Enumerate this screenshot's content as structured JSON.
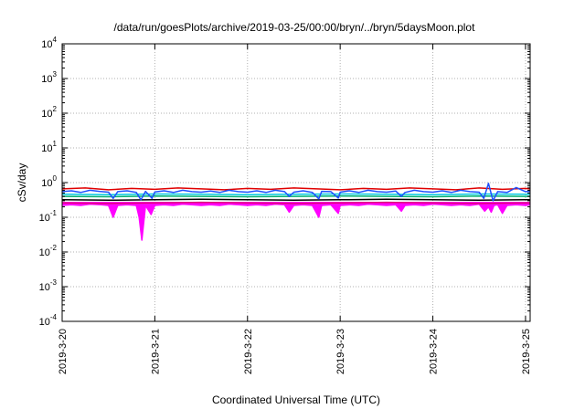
{
  "chart_data": {
    "type": "line",
    "title": "/data/run/goesPlots/archive/2019-03-25/00:00/bryn/../bryn/5daysMoon.plot",
    "xlabel": "Coordinated Universal Time (UTC)",
    "ylabel": "cSv/day",
    "yscale": "log",
    "ylim": [
      0.0001,
      10000
    ],
    "xlim": [
      0,
      5.05
    ],
    "grid": true,
    "legend": "none",
    "x_ticks": [
      {
        "value": 0,
        "label": "2019-3-20"
      },
      {
        "value": 1,
        "label": "2019-3-21"
      },
      {
        "value": 2,
        "label": "2019-3-22"
      },
      {
        "value": 3,
        "label": "2019-3-23"
      },
      {
        "value": 4,
        "label": "2019-3-24"
      },
      {
        "value": 5,
        "label": "2019-3-25"
      }
    ],
    "y_ticks": [
      {
        "value": 0.0001,
        "base": "10",
        "exp": "-4"
      },
      {
        "value": 0.001,
        "base": "10",
        "exp": "-3"
      },
      {
        "value": 0.01,
        "base": "10",
        "exp": "-2"
      },
      {
        "value": 0.1,
        "base": "10",
        "exp": "-1"
      },
      {
        "value": 1,
        "base": "10",
        "exp": "0"
      },
      {
        "value": 10,
        "base": "10",
        "exp": "1"
      },
      {
        "value": 100,
        "base": "10",
        "exp": "2"
      },
      {
        "value": 1000,
        "base": "10",
        "exp": "3"
      },
      {
        "value": 10000,
        "base": "10",
        "exp": "4"
      }
    ],
    "series": [
      {
        "color": "#ff00ff",
        "fill": true,
        "x": [
          0,
          0.1,
          0.2,
          0.3,
          0.42,
          0.5,
          0.55,
          0.6,
          0.7,
          0.8,
          0.83,
          0.86,
          0.9,
          0.96,
          1.0,
          1.1,
          1.2,
          1.3,
          1.4,
          1.5,
          1.6,
          1.7,
          1.8,
          1.9,
          2.0,
          2.1,
          2.2,
          2.3,
          2.4,
          2.45,
          2.5,
          2.6,
          2.7,
          2.77,
          2.8,
          2.9,
          2.98,
          3.0,
          3.1,
          3.2,
          3.3,
          3.4,
          3.5,
          3.6,
          3.66,
          3.7,
          3.8,
          3.9,
          4.0,
          4.1,
          4.2,
          4.3,
          4.4,
          4.5,
          4.56,
          4.6,
          4.63,
          4.66,
          4.7,
          4.75,
          4.8,
          4.9,
          5.0,
          5.05
        ],
        "y": [
          0.22,
          0.23,
          0.22,
          0.24,
          0.23,
          0.22,
          0.1,
          0.22,
          0.23,
          0.22,
          0.1,
          0.022,
          0.22,
          0.12,
          0.22,
          0.23,
          0.22,
          0.24,
          0.23,
          0.22,
          0.23,
          0.22,
          0.24,
          0.23,
          0.22,
          0.23,
          0.22,
          0.24,
          0.23,
          0.14,
          0.22,
          0.23,
          0.22,
          0.1,
          0.22,
          0.23,
          0.13,
          0.22,
          0.23,
          0.22,
          0.24,
          0.23,
          0.22,
          0.23,
          0.15,
          0.22,
          0.23,
          0.22,
          0.24,
          0.23,
          0.22,
          0.23,
          0.22,
          0.24,
          0.15,
          0.2,
          0.14,
          0.22,
          0.23,
          0.13,
          0.22,
          0.23,
          0.22,
          0.23
        ]
      },
      {
        "color": "#e0007a",
        "fill": false,
        "x": [
          0,
          0.5,
          1.0,
          1.5,
          2.0,
          2.5,
          3.0,
          3.5,
          4.0,
          4.5,
          5.0,
          5.05
        ],
        "y": [
          0.26,
          0.25,
          0.26,
          0.27,
          0.26,
          0.25,
          0.26,
          0.27,
          0.26,
          0.25,
          0.26,
          0.26
        ]
      },
      {
        "color": "#000000",
        "fill": false,
        "x": [
          0,
          0.5,
          1.0,
          1.5,
          2.0,
          2.5,
          3.0,
          3.5,
          4.0,
          4.5,
          5.0,
          5.05
        ],
        "y": [
          0.32,
          0.31,
          0.32,
          0.33,
          0.32,
          0.31,
          0.32,
          0.33,
          0.32,
          0.31,
          0.32,
          0.32
        ]
      },
      {
        "color": "#00b070",
        "fill": false,
        "x": [
          0,
          0.5,
          1.0,
          1.5,
          2.0,
          2.5,
          3.0,
          3.5,
          4.0,
          4.5,
          5.0,
          5.05
        ],
        "y": [
          0.4,
          0.39,
          0.41,
          0.4,
          0.39,
          0.4,
          0.41,
          0.4,
          0.39,
          0.41,
          0.4,
          0.4
        ]
      },
      {
        "color": "#00c8e0",
        "fill": false,
        "x": [
          0,
          0.5,
          1.0,
          1.5,
          2.0,
          2.5,
          3.0,
          3.5,
          4.0,
          4.5,
          5.0,
          5.05
        ],
        "y": [
          0.46,
          0.45,
          0.47,
          0.46,
          0.45,
          0.46,
          0.47,
          0.46,
          0.45,
          0.47,
          0.46,
          0.46
        ]
      },
      {
        "color": "#e00000",
        "fill": false,
        "x": [
          0,
          0.25,
          0.5,
          0.75,
          1.0,
          1.25,
          1.5,
          1.75,
          2.0,
          2.25,
          2.5,
          2.75,
          3.0,
          3.25,
          3.5,
          3.75,
          4.0,
          4.25,
          4.5,
          4.75,
          5.0,
          5.05
        ],
        "y": [
          0.66,
          0.7,
          0.62,
          0.68,
          0.64,
          0.7,
          0.66,
          0.62,
          0.68,
          0.64,
          0.7,
          0.66,
          0.62,
          0.68,
          0.64,
          0.7,
          0.66,
          0.62,
          0.7,
          0.64,
          0.68,
          0.66
        ]
      },
      {
        "color": "#1e50ff",
        "fill": false,
        "x": [
          0,
          0.1,
          0.2,
          0.3,
          0.4,
          0.5,
          0.55,
          0.6,
          0.7,
          0.8,
          0.85,
          0.9,
          0.97,
          1.0,
          1.1,
          1.2,
          1.3,
          1.4,
          1.5,
          1.6,
          1.7,
          1.8,
          1.9,
          2.0,
          2.1,
          2.2,
          2.3,
          2.4,
          2.45,
          2.5,
          2.6,
          2.7,
          2.77,
          2.8,
          2.9,
          2.98,
          3.0,
          3.1,
          3.2,
          3.3,
          3.4,
          3.5,
          3.6,
          3.66,
          3.7,
          3.8,
          3.9,
          4.0,
          4.1,
          4.2,
          4.3,
          4.4,
          4.5,
          4.55,
          4.6,
          4.65,
          4.7,
          4.8,
          4.9,
          5.0,
          5.05
        ],
        "y": [
          0.55,
          0.58,
          0.52,
          0.6,
          0.56,
          0.53,
          0.35,
          0.55,
          0.58,
          0.52,
          0.32,
          0.56,
          0.35,
          0.54,
          0.58,
          0.52,
          0.6,
          0.55,
          0.53,
          0.57,
          0.52,
          0.6,
          0.55,
          0.53,
          0.58,
          0.52,
          0.6,
          0.55,
          0.4,
          0.53,
          0.58,
          0.52,
          0.34,
          0.56,
          0.55,
          0.36,
          0.53,
          0.58,
          0.52,
          0.6,
          0.55,
          0.53,
          0.57,
          0.4,
          0.52,
          0.6,
          0.55,
          0.53,
          0.58,
          0.52,
          0.6,
          0.55,
          0.53,
          0.35,
          0.95,
          0.3,
          0.55,
          0.52,
          0.72,
          0.55,
          0.56
        ]
      }
    ]
  }
}
